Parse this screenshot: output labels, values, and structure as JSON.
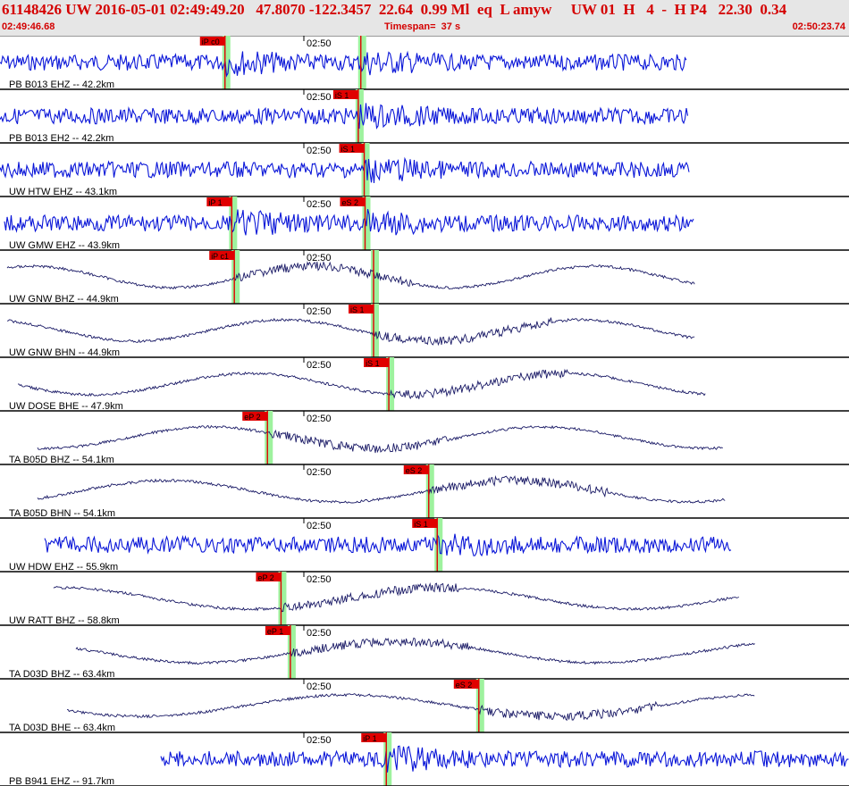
{
  "header": {
    "title": "61148426 UW 2016-05-01 02:49:49.20   47.8070 -122.3457  22.64  0.99 Ml  eq  L amyw     UW 01  H   4  -  H P4   22.30  0.34",
    "start_time": "02:49:46.68",
    "timespan": "Timespan=  37 s",
    "end_time": "02:50:23.74"
  },
  "colors": {
    "header_text": "#d40000",
    "high_freq_trace": "#0a16d8",
    "long_period_trace": "#1a1a66",
    "pick_flag": "#e00000",
    "pick_window": "#9ef29e",
    "separator": "#000000"
  },
  "tick_label": "02:50",
  "channels": [
    {
      "label": "PB B013 EHZ -- 42.2km",
      "style": "noise",
      "picks": [
        {
          "text": "iP c0",
          "t": 0.265
        },
        {
          "text": "",
          "t": 0.425
        }
      ]
    },
    {
      "label": "PB B013 EH2 -- 42.2km",
      "style": "noise",
      "picks": [
        {
          "text": "iS 1",
          "t": 0.422
        }
      ]
    },
    {
      "label": "UW HTW EHZ -- 43.1km",
      "style": "noise",
      "picks": [
        {
          "text": "iS 1",
          "t": 0.429
        }
      ]
    },
    {
      "label": "UW GMW EHZ -- 43.9km",
      "style": "noise",
      "picks": [
        {
          "text": "iP 1",
          "t": 0.273
        },
        {
          "text": "eS 2",
          "t": 0.43
        }
      ]
    },
    {
      "label": "UW GNW BHZ -- 44.9km",
      "style": "wave",
      "picks": [
        {
          "text": "iP c1",
          "t": 0.276
        },
        {
          "text": "",
          "t": 0.44
        }
      ]
    },
    {
      "label": "UW GNW BHN -- 44.9km",
      "style": "wave",
      "picks": [
        {
          "text": "iS 1",
          "t": 0.44
        }
      ]
    },
    {
      "label": "UW DOSE BHE -- 47.9km",
      "style": "wave",
      "picks": [
        {
          "text": "iS 1",
          "t": 0.458
        }
      ]
    },
    {
      "label": "TA B05D BHZ -- 54.1km",
      "style": "wave",
      "picks": [
        {
          "text": "eP 2",
          "t": 0.315
        }
      ]
    },
    {
      "label": "TA B05D BHN -- 54.1km",
      "style": "wave",
      "picks": [
        {
          "text": "eS 2",
          "t": 0.505
        }
      ]
    },
    {
      "label": "UW HDW EHZ -- 55.9km",
      "style": "noise",
      "picks": [
        {
          "text": "iS 1",
          "t": 0.515
        }
      ]
    },
    {
      "label": "UW RATT BHZ -- 58.8km",
      "style": "wave",
      "picks": [
        {
          "text": "eP 2",
          "t": 0.331
        }
      ]
    },
    {
      "label": "TA D03D BHZ -- 63.4km",
      "style": "wave",
      "picks": [
        {
          "text": "eP 1",
          "t": 0.342
        }
      ]
    },
    {
      "label": "TA D03D BHE -- 63.4km",
      "style": "wave",
      "picks": [
        {
          "text": "eS 2",
          "t": 0.564
        }
      ]
    },
    {
      "label": "PB B941 EHZ -- 91.7km",
      "style": "noise",
      "picks": [
        {
          "text": "iP 1",
          "t": 0.455
        }
      ]
    }
  ]
}
